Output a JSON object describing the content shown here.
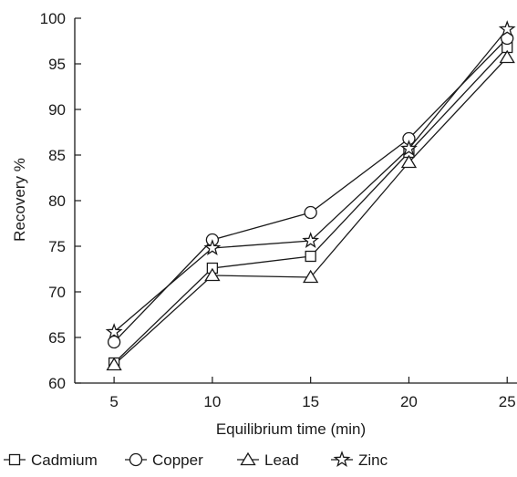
{
  "chart_data": {
    "type": "line",
    "x": [
      5,
      10,
      15,
      20,
      25
    ],
    "xlabel": "Equilibrium time (min)",
    "ylabel": "Recovery %",
    "xlim": [
      3,
      25.5
    ],
    "ylim": [
      60,
      100
    ],
    "xticks": [
      "5",
      "10",
      "15",
      "20",
      "25"
    ],
    "yticks": [
      "60",
      "65",
      "70",
      "75",
      "80",
      "85",
      "90",
      "95",
      "100"
    ],
    "grid": false,
    "legend_position": "bottom",
    "series": [
      {
        "name": "Cadmium",
        "marker": "square",
        "values": [
          62.2,
          72.6,
          73.9,
          85.3,
          96.8
        ]
      },
      {
        "name": "Copper",
        "marker": "circle",
        "values": [
          64.5,
          75.7,
          78.7,
          86.8,
          97.8
        ]
      },
      {
        "name": "Lead",
        "marker": "triangle",
        "values": [
          62.0,
          71.8,
          71.6,
          84.2,
          95.7
        ]
      },
      {
        "name": "Zinc",
        "marker": "star",
        "values": [
          65.6,
          74.8,
          75.6,
          85.7,
          98.8
        ]
      }
    ],
    "colors": {
      "line": "#1a1a1a",
      "background": "#ffffff"
    }
  }
}
